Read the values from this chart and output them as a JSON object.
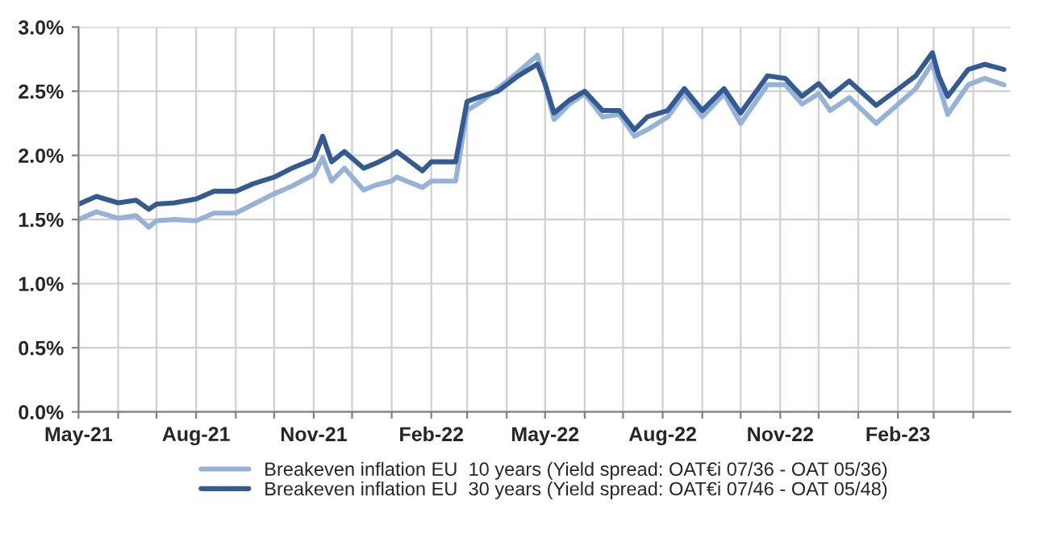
{
  "chart_data": {
    "type": "line",
    "x": [
      "2021-05-01",
      "2021-05-15",
      "2021-06-01",
      "2021-06-15",
      "2021-06-25",
      "2021-07-01",
      "2021-07-15",
      "2021-08-01",
      "2021-08-15",
      "2021-09-01",
      "2021-09-15",
      "2021-10-01",
      "2021-10-15",
      "2021-11-01",
      "2021-11-08",
      "2021-11-15",
      "2021-11-25",
      "2021-12-10",
      "2021-12-20",
      "2022-01-01",
      "2022-01-05",
      "2022-01-25",
      "2022-02-01",
      "2022-02-20",
      "2022-03-01",
      "2022-03-12",
      "2022-03-25",
      "2022-04-10",
      "2022-04-25",
      "2022-05-01",
      "2022-05-08",
      "2022-05-20",
      "2022-06-01",
      "2022-06-15",
      "2022-06-28",
      "2022-07-10",
      "2022-07-20",
      "2022-08-05",
      "2022-08-18",
      "2022-09-01",
      "2022-09-18",
      "2022-10-01",
      "2022-10-22",
      "2022-11-05",
      "2022-11-18",
      "2022-12-01",
      "2022-12-10",
      "2022-12-25",
      "2023-01-15",
      "2023-01-30",
      "2023-02-15",
      "2023-02-28",
      "2023-03-05",
      "2023-03-12",
      "2023-03-28",
      "2023-04-10",
      "2023-04-25"
    ],
    "series": [
      {
        "name": "Breakeven inflation EU  10 years (Yield spread: OAT€i 07/36 - OAT 05/36)",
        "color": "#95b3d7",
        "values": [
          1.5,
          1.56,
          1.51,
          1.53,
          1.44,
          1.49,
          1.5,
          1.49,
          1.55,
          1.55,
          1.62,
          1.7,
          1.76,
          1.85,
          1.98,
          1.8,
          1.9,
          1.73,
          1.77,
          1.8,
          1.83,
          1.75,
          1.8,
          1.8,
          2.35,
          2.42,
          2.52,
          2.65,
          2.78,
          2.55,
          2.28,
          2.4,
          2.48,
          2.3,
          2.32,
          2.15,
          2.2,
          2.3,
          2.48,
          2.3,
          2.48,
          2.25,
          2.55,
          2.55,
          2.4,
          2.48,
          2.35,
          2.45,
          2.25,
          2.38,
          2.52,
          2.72,
          2.55,
          2.32,
          2.55,
          2.6,
          2.55
        ]
      },
      {
        "name": "Breakeven inflation EU  30 years (Yield spread: OAT€i 07/46 - OAT 05/48)",
        "color": "#325b94",
        "values": [
          1.62,
          1.68,
          1.63,
          1.65,
          1.58,
          1.62,
          1.63,
          1.66,
          1.72,
          1.72,
          1.78,
          1.83,
          1.9,
          1.97,
          2.15,
          1.95,
          2.03,
          1.9,
          1.94,
          2.0,
          2.03,
          1.88,
          1.95,
          1.95,
          2.42,
          2.46,
          2.5,
          2.62,
          2.71,
          2.56,
          2.33,
          2.43,
          2.5,
          2.35,
          2.35,
          2.2,
          2.3,
          2.35,
          2.52,
          2.35,
          2.52,
          2.33,
          2.62,
          2.6,
          2.46,
          2.56,
          2.46,
          2.58,
          2.39,
          2.5,
          2.62,
          2.8,
          2.62,
          2.46,
          2.67,
          2.71,
          2.67
        ]
      }
    ],
    "xlim": [
      "2021-05-01",
      "2023-04-30"
    ],
    "xticks": [
      {
        "value": "2021-05-01",
        "label": "May-21"
      },
      {
        "value": "2021-06-01",
        "label": null
      },
      {
        "value": "2021-07-01",
        "label": null
      },
      {
        "value": "2021-08-01",
        "label": "Aug-21"
      },
      {
        "value": "2021-09-01",
        "label": null
      },
      {
        "value": "2021-10-01",
        "label": null
      },
      {
        "value": "2021-11-01",
        "label": "Nov-21"
      },
      {
        "value": "2021-12-01",
        "label": null
      },
      {
        "value": "2022-01-01",
        "label": null
      },
      {
        "value": "2022-02-01",
        "label": "Feb-22"
      },
      {
        "value": "2022-03-01",
        "label": null
      },
      {
        "value": "2022-04-01",
        "label": null
      },
      {
        "value": "2022-05-01",
        "label": "May-22"
      },
      {
        "value": "2022-06-01",
        "label": null
      },
      {
        "value": "2022-07-01",
        "label": null
      },
      {
        "value": "2022-08-01",
        "label": "Aug-22"
      },
      {
        "value": "2022-09-01",
        "label": null
      },
      {
        "value": "2022-10-01",
        "label": null
      },
      {
        "value": "2022-11-01",
        "label": "Nov-22"
      },
      {
        "value": "2022-12-01",
        "label": null
      },
      {
        "value": "2023-01-01",
        "label": null
      },
      {
        "value": "2023-02-01",
        "label": "Feb-23"
      },
      {
        "value": "2023-03-01",
        "label": null
      },
      {
        "value": "2023-04-01",
        "label": null
      }
    ],
    "ylim": [
      0,
      3
    ],
    "yticks": [
      {
        "value": 0,
        "label": "0.0%"
      },
      {
        "value": 0.5,
        "label": "0.5%"
      },
      {
        "value": 1,
        "label": "1.0%"
      },
      {
        "value": 1.5,
        "label": "1.5%"
      },
      {
        "value": 2,
        "label": "2.0%"
      },
      {
        "value": 2.5,
        "label": "2.5%"
      },
      {
        "value": 3,
        "label": "3.0%"
      }
    ],
    "grid": true,
    "legend": "bottom",
    "marker": "none",
    "line_style": "solid"
  }
}
